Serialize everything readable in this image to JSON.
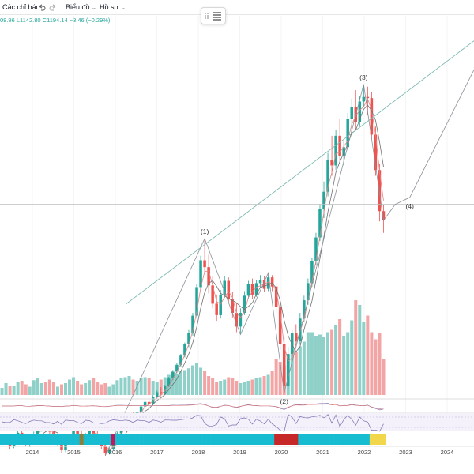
{
  "toolbar": {
    "indicators_label": "Các chỉ báo",
    "chart_label": "Biểu đồ",
    "profile_label": "Hồ sơ",
    "undo_icon": "undo-icon",
    "redo_icon": "redo-icon"
  },
  "ohlc_readout": "08.96  L1142.80  C1194.14  −3.46 (−0.29%)",
  "colors": {
    "up": "#26a69a",
    "down": "#ef5350",
    "vol_up": "#8fd0c8",
    "vol_down": "#f3a5a5",
    "trend_line": "#7fb9b3",
    "grid": "#eeeeee"
  },
  "chart_data": {
    "type": "candlestick",
    "x_ticks": [
      "2014",
      "2015",
      "2016",
      "2017",
      "2018",
      "2019",
      "2020",
      "2021",
      "2022",
      "2023",
      "2024"
    ],
    "wave_labels": [
      "(1)",
      "(2)",
      "(3)",
      "(4)"
    ],
    "series": [
      {
        "values": [
          [
            574,
            578,
            571,
            576
          ],
          [
            576,
            580,
            568,
            570
          ],
          [
            570,
            572,
            562,
            566
          ],
          [
            566,
            584,
            563,
            582
          ],
          [
            582,
            594,
            580,
            590
          ],
          [
            590,
            596,
            584,
            586
          ],
          [
            586,
            588,
            566,
            572
          ],
          [
            572,
            578,
            565,
            575
          ],
          [
            575,
            592,
            573,
            588
          ],
          [
            588,
            600,
            585,
            596
          ],
          [
            596,
            606,
            592,
            603
          ],
          [
            603,
            608,
            596,
            598
          ],
          [
            598,
            604,
            588,
            592
          ],
          [
            592,
            596,
            570,
            576
          ],
          [
            576,
            584,
            568,
            580
          ],
          [
            580,
            584,
            555,
            560
          ],
          [
            560,
            578,
            556,
            574
          ],
          [
            574,
            586,
            571,
            583
          ],
          [
            583,
            596,
            580,
            593
          ],
          [
            593,
            600,
            584,
            588
          ],
          [
            588,
            594,
            570,
            574
          ],
          [
            574,
            590,
            570,
            586
          ],
          [
            586,
            598,
            582,
            595
          ],
          [
            595,
            600,
            584,
            588
          ],
          [
            588,
            594,
            576,
            580
          ],
          [
            580,
            584,
            562,
            566
          ],
          [
            566,
            572,
            550,
            555
          ],
          [
            555,
            566,
            552,
            562
          ],
          [
            562,
            580,
            560,
            577
          ],
          [
            577,
            592,
            574,
            589
          ],
          [
            589,
            600,
            586,
            597
          ],
          [
            597,
            612,
            594,
            610
          ],
          [
            610,
            622,
            606,
            619
          ],
          [
            619,
            626,
            610,
            614
          ],
          [
            614,
            630,
            610,
            627
          ],
          [
            627,
            640,
            624,
            636
          ],
          [
            636,
            648,
            632,
            644
          ],
          [
            644,
            652,
            636,
            640
          ],
          [
            640,
            656,
            638,
            653
          ],
          [
            653,
            664,
            650,
            661
          ],
          [
            661,
            670,
            654,
            658
          ],
          [
            658,
            674,
            656,
            672
          ],
          [
            672,
            688,
            670,
            685
          ],
          [
            685,
            700,
            682,
            697
          ],
          [
            697,
            712,
            694,
            709
          ],
          [
            709,
            728,
            706,
            725
          ],
          [
            725,
            748,
            722,
            745
          ],
          [
            745,
            770,
            740,
            765
          ],
          [
            765,
            800,
            760,
            795
          ],
          [
            795,
            850,
            790,
            845
          ],
          [
            845,
            900,
            840,
            892
          ],
          [
            892,
            930,
            868,
            880
          ],
          [
            880,
            902,
            834,
            848
          ],
          [
            848,
            864,
            808,
            816
          ],
          [
            816,
            832,
            786,
            796
          ],
          [
            796,
            840,
            790,
            832
          ],
          [
            832,
            864,
            826,
            856
          ],
          [
            856,
            862,
            818,
            824
          ],
          [
            824,
            836,
            792,
            800
          ],
          [
            800,
            818,
            766,
            776
          ],
          [
            776,
            808,
            762,
            800
          ],
          [
            800,
            838,
            796,
            830
          ],
          [
            830,
            856,
            824,
            850
          ],
          [
            850,
            860,
            824,
            832
          ],
          [
            832,
            858,
            828,
            852
          ],
          [
            852,
            866,
            844,
            858
          ],
          [
            858,
            864,
            836,
            842
          ],
          [
            842,
            870,
            838,
            862
          ],
          [
            862,
            866,
            838,
            846
          ],
          [
            846,
            852,
            800,
            810
          ],
          [
            810,
            818,
            736,
            746
          ],
          [
            746,
            758,
            660,
            672
          ],
          [
            672,
            740,
            666,
            728
          ],
          [
            728,
            770,
            720,
            764
          ],
          [
            764,
            780,
            740,
            750
          ],
          [
            750,
            800,
            744,
            790
          ],
          [
            790,
            830,
            784,
            822
          ],
          [
            822,
            860,
            814,
            852
          ],
          [
            852,
            896,
            846,
            890
          ],
          [
            890,
            940,
            884,
            932
          ],
          [
            932,
            990,
            926,
            982
          ],
          [
            982,
            1030,
            966,
            1012
          ],
          [
            1012,
            1080,
            1004,
            1068
          ],
          [
            1068,
            1110,
            1040,
            1058
          ],
          [
            1058,
            1120,
            1050,
            1110
          ],
          [
            1110,
            1140,
            1060,
            1074
          ],
          [
            1074,
            1100,
            1058,
            1090
          ],
          [
            1090,
            1150,
            1084,
            1140
          ],
          [
            1140,
            1175,
            1118,
            1160
          ],
          [
            1160,
            1190,
            1120,
            1134
          ],
          [
            1134,
            1180,
            1126,
            1170
          ],
          [
            1170,
            1200,
            1160,
            1178
          ],
          [
            1178,
            1196,
            1146,
            1176
          ],
          [
            1176,
            1186,
            1104,
            1112
          ],
          [
            1112,
            1126,
            1040,
            1050
          ],
          [
            1050,
            1060,
            960,
            978
          ],
          [
            978,
            990,
            940,
            962
          ]
        ],
        "volume": [
          12,
          20,
          16,
          15,
          22,
          24,
          18,
          14,
          25,
          28,
          20,
          22,
          26,
          22,
          14,
          18,
          20,
          26,
          30,
          24,
          18,
          20,
          25,
          28,
          22,
          18,
          20,
          14,
          18,
          25,
          28,
          30,
          32,
          26,
          24,
          28,
          30,
          28,
          24,
          22,
          26,
          30,
          34,
          38,
          36,
          40,
          42,
          45,
          50,
          54,
          46,
          40,
          32,
          28,
          22,
          24,
          26,
          30,
          28,
          24,
          20,
          22,
          24,
          26,
          28,
          30,
          32,
          34,
          40,
          60,
          56,
          50,
          68,
          78,
          72,
          82,
          90,
          106,
          106,
          100,
          102,
          98,
          106,
          110,
          118,
          128,
          100,
          106,
          126,
          160,
          152,
          124,
          134,
          106,
          94,
          104,
          60
        ],
        "vol_up": [
          1,
          1,
          0,
          1,
          1,
          0,
          0,
          1,
          1,
          1,
          1,
          0,
          0,
          0,
          1,
          0,
          1,
          1,
          1,
          0,
          0,
          1,
          1,
          0,
          0,
          0,
          0,
          1,
          1,
          1,
          1,
          1,
          1,
          0,
          1,
          1,
          1,
          0,
          1,
          1,
          0,
          1,
          1,
          1,
          1,
          1,
          1,
          1,
          1,
          1,
          1,
          0,
          0,
          0,
          0,
          1,
          1,
          0,
          0,
          0,
          1,
          1,
          1,
          0,
          1,
          1,
          0,
          1,
          0,
          0,
          0,
          0,
          1,
          1,
          0,
          1,
          1,
          1,
          1,
          1,
          1,
          1,
          1,
          0,
          1,
          0,
          1,
          1,
          1,
          0,
          1,
          1,
          0,
          0,
          0,
          0,
          0
        ]
      }
    ],
    "projection": [
      [
        2022.5,
        962
      ],
      [
        2022.75,
        990
      ],
      [
        2023.1,
        1002
      ],
      [
        2024.9,
        1262
      ]
    ],
    "upper_trend_line": [
      [
        2016.25,
        815
      ],
      [
        2024.9,
        1290
      ]
    ],
    "horizontal_level": 990,
    "ylim": [
      540,
      1320
    ]
  }
}
